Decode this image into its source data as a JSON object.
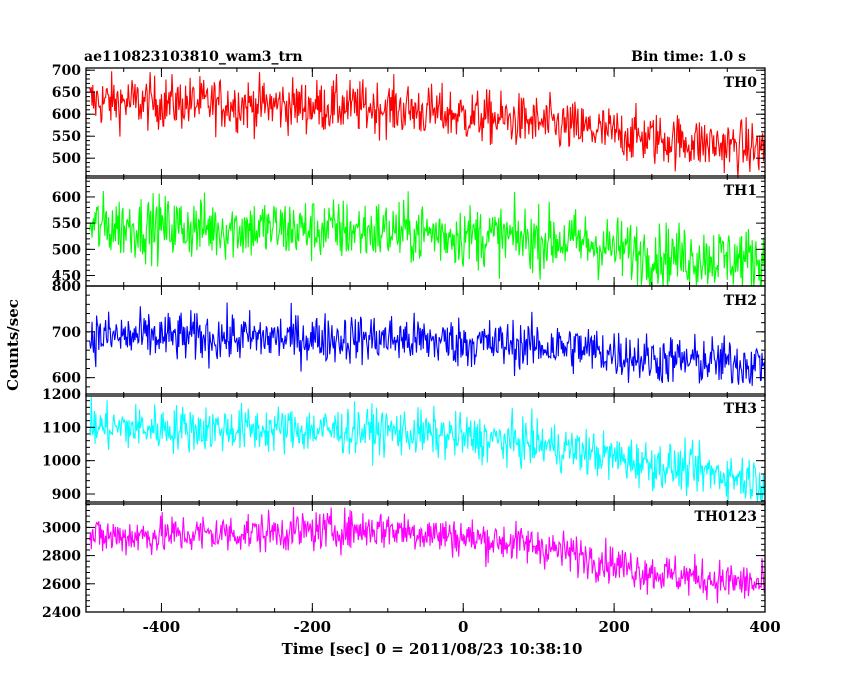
{
  "header": {
    "title": "ae110823103810_wam3_trn",
    "bin_time": "Bin time: 1.0 s"
  },
  "axes": {
    "ylabel": "Counts/sec",
    "xlabel": "Time [sec] 0 = 2011/08/23 10:38:10"
  },
  "chart_data": {
    "type": "line",
    "x_range": [
      -500,
      400
    ],
    "x_ticks": [
      -400,
      -200,
      0,
      200,
      400
    ],
    "x_minor_step": 50,
    "bin_seconds": 1.0,
    "grid": false,
    "legend": "per-panel label at top-right",
    "panels": [
      {
        "name": "TH0",
        "color": "#ff0000",
        "ylim": [
          455,
          705
        ],
        "y_ticks": [
          500,
          550,
          600,
          650,
          700
        ],
        "trend": [
          [
            -500,
            630
          ],
          [
            -100,
            615
          ],
          [
            100,
            580
          ],
          [
            250,
            545
          ],
          [
            400,
            520
          ]
        ],
        "noise_sd": 30
      },
      {
        "name": "TH1",
        "color": "#00ff00",
        "ylim": [
          430,
          640
        ],
        "y_ticks": [
          450,
          500,
          550,
          600
        ],
        "trend": [
          [
            -500,
            545
          ],
          [
            -100,
            535
          ],
          [
            150,
            515
          ],
          [
            250,
            490
          ],
          [
            400,
            480
          ]
        ],
        "noise_sd": 30
      },
      {
        "name": "TH2",
        "color": "#0000ff",
        "ylim": [
          560,
          800
        ],
        "y_ticks": [
          600,
          700,
          800
        ],
        "trend": [
          [
            -500,
            690
          ],
          [
            -100,
            685
          ],
          [
            150,
            665
          ],
          [
            250,
            640
          ],
          [
            400,
            630
          ]
        ],
        "noise_sd": 27
      },
      {
        "name": "TH3",
        "color": "#00ffff",
        "ylim": [
          870,
          1200
        ],
        "y_ticks": [
          900,
          1000,
          1100,
          1200
        ],
        "trend": [
          [
            -500,
            1100
          ],
          [
            -100,
            1090
          ],
          [
            100,
            1050
          ],
          [
            250,
            990
          ],
          [
            400,
            940
          ]
        ],
        "noise_sd": 35
      },
      {
        "name": "TH0123",
        "color": "#ff00ff",
        "ylim": [
          2400,
          3180
        ],
        "y_ticks": [
          2400,
          2600,
          2800,
          3000
        ],
        "trend": [
          [
            -500,
            2930
          ],
          [
            -100,
            2990
          ],
          [
            100,
            2870
          ],
          [
            250,
            2680
          ],
          [
            400,
            2590
          ]
        ],
        "noise_sd": 70
      }
    ]
  }
}
